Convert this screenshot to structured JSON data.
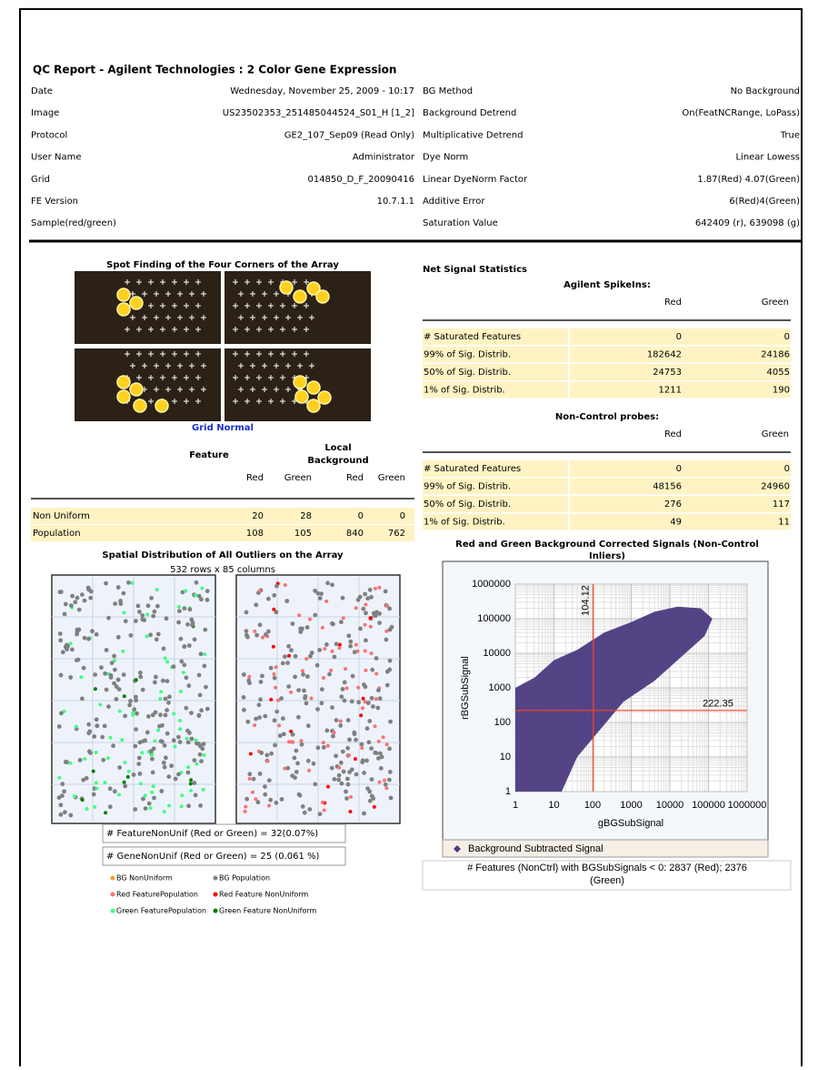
{
  "header": {
    "title": "QC Report - Agilent Technologies : 2 Color Gene Expression"
  },
  "info_left": [
    {
      "label": "Date",
      "value": "Wednesday, November 25, 2009 - 10:17"
    },
    {
      "label": "Image",
      "value": "US23502353_251485044524_S01_H [1_2]"
    },
    {
      "label": "Protocol",
      "value": "GE2_107_Sep09 (Read Only)"
    },
    {
      "label": "User Name",
      "value": "Administrator"
    },
    {
      "label": "Grid",
      "value": "014850_D_F_20090416"
    },
    {
      "label": "FE Version",
      "value": "10.7.1.1"
    },
    {
      "label": "Sample(red/green)",
      "value": null
    }
  ],
  "info_right": [
    {
      "label": "BG Method",
      "value": "No Background"
    },
    {
      "label": "Background Detrend",
      "value": "On(FeatNCRange, LoPass)"
    },
    {
      "label": "Multiplicative Detrend",
      "value": "True"
    },
    {
      "label": "Dye Norm",
      "value": "Linear Lowess"
    },
    {
      "label": "Linear DyeNorm Factor",
      "value": "1.87(Red) 4.07(Green)"
    },
    {
      "label": "Additive Error",
      "value": "6(Red)4(Green)"
    },
    {
      "label": "Saturation Value",
      "value": "642409 (r), 639098 (g)"
    }
  ],
  "spot_finding": {
    "title": "Spot Finding of the Four Corners of the Array",
    "caption": "Grid Normal"
  },
  "uniformity_table": {
    "group_headers": [
      "Feature",
      "Local Background"
    ],
    "columns": [
      "Red",
      "Green",
      "Red",
      "Green"
    ],
    "rows": [
      {
        "label": "Non Uniform",
        "values": [
          20,
          28,
          0,
          0
        ]
      },
      {
        "label": "Population",
        "values": [
          108,
          105,
          840,
          762
        ]
      }
    ]
  },
  "spatial": {
    "title": "Spatial Distribution of All Outliers on the Array",
    "subtitle": "532 rows x 85 columns",
    "stats": [
      "# FeatureNonUnif (Red or Green) = 32(0.07%)",
      "# GeneNonUnif (Red or Green) = 25 (0.061 %)"
    ],
    "legend": [
      {
        "label": "BG NonUniform",
        "color": "#f0a030"
      },
      {
        "label": "BG Population",
        "color": "#808080"
      },
      {
        "label": "Red FeaturePopulation",
        "color": "#ff7070"
      },
      {
        "label": "Red Feature NonUniform",
        "color": "#ff0000"
      },
      {
        "label": "Green FeaturePopulation",
        "color": "#40ff80"
      },
      {
        "label": "Green Feature NonUniform",
        "color": "#008000"
      }
    ]
  },
  "net_signal": {
    "title": "Net Signal Statistics",
    "sections": [
      {
        "title": "Agilent SpikeIns:",
        "columns": [
          "Red",
          "Green"
        ],
        "rows": [
          {
            "label": "# Saturated Features",
            "values": [
              0,
              0
            ]
          },
          {
            "label": "99% of Sig. Distrib.",
            "values": [
              182642,
              24186
            ]
          },
          {
            "label": "50% of Sig. Distrib.",
            "values": [
              24753,
              4055
            ]
          },
          {
            "label": "1% of Sig. Distrib.",
            "values": [
              1211,
              190
            ]
          }
        ]
      },
      {
        "title": "Non-Control probes:",
        "columns": [
          "Red",
          "Green"
        ],
        "rows": [
          {
            "label": "# Saturated Features",
            "values": [
              0,
              0
            ]
          },
          {
            "label": "99% of Sig. Distrib.",
            "values": [
              48156,
              24960
            ]
          },
          {
            "label": "50% of Sig. Distrib.",
            "values": [
              276,
              117
            ]
          },
          {
            "label": "1% of Sig. Distrib.",
            "values": [
              49,
              11
            ]
          }
        ]
      }
    ]
  },
  "scatter": {
    "title": "Red and Green Background Corrected Signals (Non-Control Inliers)",
    "xlabel": "gBGSubSignal",
    "ylabel": "rBGSubSignal",
    "log_scale": true,
    "xlim": [
      1,
      1000000
    ],
    "ylim": [
      1,
      1000000
    ],
    "xticks": [
      1,
      10,
      100,
      1000,
      10000,
      100000,
      1000000
    ],
    "yticks": [
      1,
      10,
      100,
      1000,
      10000,
      100000,
      1000000
    ],
    "vline": 104.12,
    "hline": 222.35,
    "line_color": "#ff4020",
    "legend": {
      "label": "Background Subtracted Signal",
      "color": "#4b3a80"
    },
    "note": "# Features (NonCtrl) with BGSubSignals < 0: 2837 (Red); 2376 (Green)"
  }
}
